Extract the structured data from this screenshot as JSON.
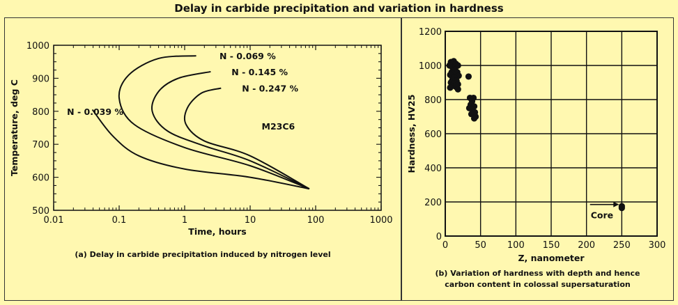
{
  "title": "Delay in carbide precipitation and variation in hardness",
  "colors": {
    "background": "#fff8b0",
    "ink": "#111111"
  },
  "chart_data": [
    {
      "type": "line",
      "xlabel": "Time, hours",
      "ylabel": "Temperature, deg C",
      "x_scale": "log",
      "xlim": [
        0.01,
        1000
      ],
      "ylim": [
        500,
        1000
      ],
      "x_ticks": [
        "0.01",
        "0.1",
        "1",
        "10",
        "100",
        "1000"
      ],
      "y_ticks": [
        "500",
        "600",
        "700",
        "800",
        "900",
        "1000"
      ],
      "region_label": "M23C6",
      "caption": "(a) Delay in carbide precipitation induced by nitrogen level",
      "series": [
        {
          "name": "N - 0.039 %",
          "points": [
            [
              0.039,
              805
            ],
            [
              0.08,
              725
            ],
            [
              0.2,
              665
            ],
            [
              1,
              625
            ],
            [
              10,
              600
            ],
            [
              80,
              565
            ]
          ]
        },
        {
          "name": "N - 0.069 %",
          "points": [
            [
              1.5,
              968
            ],
            [
              0.4,
              960
            ],
            [
              0.14,
              910
            ],
            [
              0.1,
              840
            ],
            [
              0.17,
              760
            ],
            [
              1,
              690
            ],
            [
              10,
              635
            ],
            [
              80,
              565
            ]
          ]
        },
        {
          "name": "N - 0.145 %",
          "points": [
            [
              2.5,
              920
            ],
            [
              0.8,
              900
            ],
            [
              0.4,
              860
            ],
            [
              0.32,
              800
            ],
            [
              0.55,
              740
            ],
            [
              2,
              695
            ],
            [
              10,
              650
            ],
            [
              80,
              565
            ]
          ]
        },
        {
          "name": "N - 0.247 %",
          "points": [
            [
              3.6,
              870
            ],
            [
              1.8,
              855
            ],
            [
              1.1,
              810
            ],
            [
              1.05,
              760
            ],
            [
              2,
              710
            ],
            [
              10,
              665
            ],
            [
              80,
              565
            ]
          ]
        }
      ]
    },
    {
      "type": "scatter",
      "xlabel": "Z, nanometer",
      "ylabel": "Hardness, HV25",
      "xlim": [
        0,
        300
      ],
      "ylim": [
        0,
        1200
      ],
      "x_ticks": [
        "0",
        "50",
        "100",
        "150",
        "200",
        "250",
        "300"
      ],
      "y_ticks": [
        "0",
        "200",
        "400",
        "600",
        "800",
        "1000",
        "1200"
      ],
      "grid": true,
      "annotation": "Core",
      "caption_lines": [
        "(b) Variation of hardness with depth and hence",
        "carbon content in colossal supersaturation"
      ],
      "points": [
        [
          8,
          1020
        ],
        [
          12,
          1025
        ],
        [
          15,
          1010
        ],
        [
          18,
          1000
        ],
        [
          10,
          990
        ],
        [
          6,
          1000
        ],
        [
          14,
          975
        ],
        [
          9,
          960
        ],
        [
          17,
          960
        ],
        [
          11,
          950
        ],
        [
          7,
          945
        ],
        [
          19,
          940
        ],
        [
          13,
          930
        ],
        [
          10,
          915
        ],
        [
          16,
          910
        ],
        [
          8,
          900
        ],
        [
          12,
          895
        ],
        [
          18,
          890
        ],
        [
          9,
          880
        ],
        [
          15,
          875
        ],
        [
          7,
          870
        ],
        [
          18,
          860
        ],
        [
          33,
          935
        ],
        [
          35,
          810
        ],
        [
          40,
          810
        ],
        [
          38,
          790
        ],
        [
          36,
          770
        ],
        [
          41,
          760
        ],
        [
          34,
          750
        ],
        [
          38,
          745
        ],
        [
          40,
          730
        ],
        [
          42,
          725
        ],
        [
          37,
          715
        ],
        [
          43,
          700
        ],
        [
          41,
          690
        ],
        [
          250,
          175
        ],
        [
          250,
          165
        ]
      ]
    }
  ]
}
